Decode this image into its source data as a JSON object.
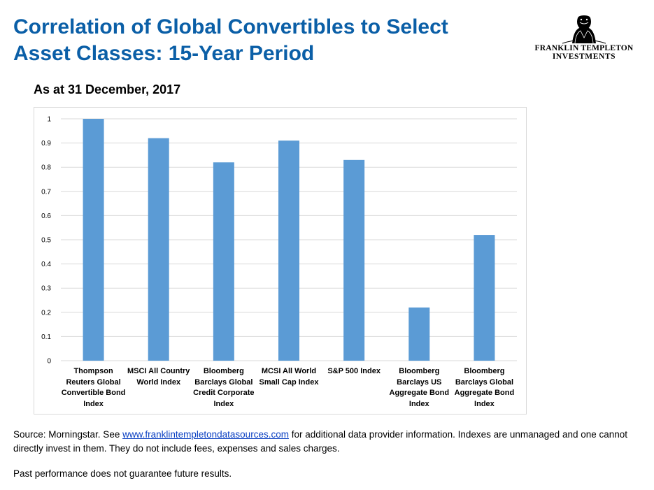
{
  "header": {
    "title_line1": "Correlation of Global Convertibles to Select",
    "title_line2": "Asset Classes: 15-Year Period",
    "logo_line1": "FRANKLIN TEMPLETON",
    "logo_line2": "INVESTMENTS"
  },
  "subtitle": "As at 31 December, 2017",
  "chart_data": {
    "type": "bar",
    "categories": [
      "Thompson Reuters Global Convertible Bond Index",
      "MSCI All Country World Index",
      "Bloomberg Barclays Global Credit Corporate Index",
      "MCSI All World Small Cap Index",
      "S&P 500 Index",
      "Bloomberg Barclays US Aggregate Bond Index",
      "Bloomberg Barclays Global Aggregate Bond Index"
    ],
    "category_lines": [
      [
        "Thompson",
        "Reuters Global",
        "Convertible Bond",
        "Index"
      ],
      [
        "MSCI All Country",
        "World Index"
      ],
      [
        "Bloomberg",
        "Barclays Global",
        "Credit Corporate",
        "Index"
      ],
      [
        "MCSI All World",
        "Small Cap Index"
      ],
      [
        "S&P 500 Index"
      ],
      [
        "Bloomberg",
        "Barclays US",
        "Aggregate Bond",
        "Index"
      ],
      [
        "Bloomberg",
        "Barclays Global",
        "Aggregate Bond",
        "Index"
      ]
    ],
    "values": [
      1.0,
      0.92,
      0.82,
      0.91,
      0.83,
      0.22,
      0.52
    ],
    "yticks": [
      "0",
      "0.1",
      "0.2",
      "0.3",
      "0.4",
      "0.5",
      "0.6",
      "0.7",
      "0.8",
      "0.9",
      "1"
    ],
    "ylim": [
      0,
      1
    ],
    "grid": true,
    "bar_color": "#5b9bd5",
    "grid_color": "#d9d9d9",
    "xlabel": "",
    "ylabel": ""
  },
  "footer": {
    "source_prefix": "Source: Morningstar. See ",
    "source_link": "www.franklintempletondatasources.com",
    "source_suffix": " for additional data provider information. Indexes are unmanaged and one cannot directly invest in them. They do not include fees, expenses and sales charges.",
    "past_performance": "Past performance does not guarantee future results."
  },
  "colors": {
    "title": "#0b5fa7",
    "link": "#0b40c2"
  }
}
